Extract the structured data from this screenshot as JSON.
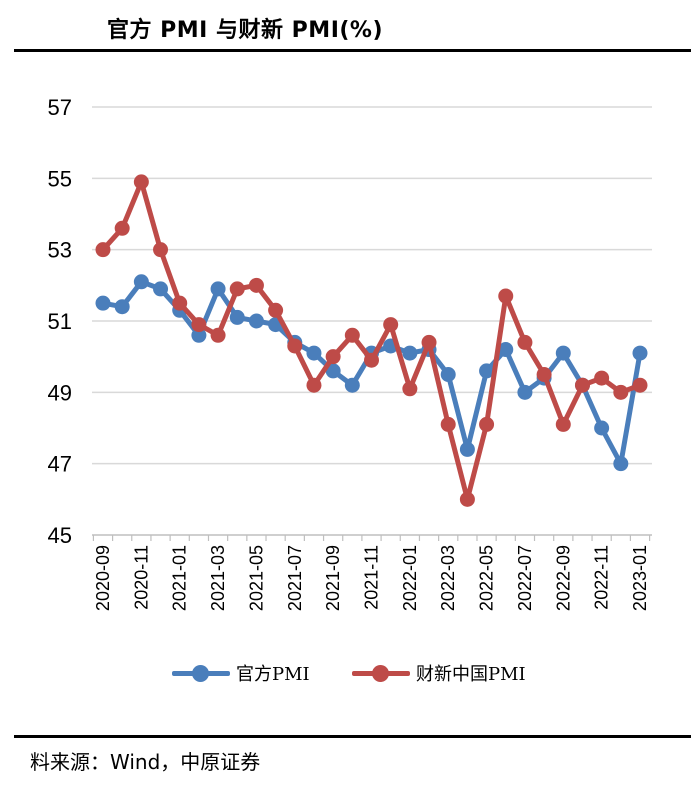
{
  "header": {
    "title": "官方 PMI 与财新 PMI(%)"
  },
  "footer": {
    "source": "料来源：Wind，中原证券"
  },
  "colors": {
    "official": "#4a7ebb",
    "caixin": "#be4b48",
    "grid": "#d9d9d9",
    "axis": "#bfbfbf"
  },
  "chart_data": {
    "type": "line",
    "title": "官方 PMI 与财新 PMI(%)",
    "xlabel": "",
    "ylabel": "",
    "ylim": [
      45,
      57
    ],
    "yticks": [
      45,
      47,
      49,
      51,
      53,
      55,
      57
    ],
    "grid": true,
    "legend_position": "bottom",
    "x": [
      "2020-09",
      "2020-10",
      "2020-11",
      "2020-12",
      "2021-01",
      "2021-02",
      "2021-03",
      "2021-04",
      "2021-05",
      "2021-06",
      "2021-07",
      "2021-08",
      "2021-09",
      "2021-10",
      "2021-11",
      "2021-12",
      "2022-01",
      "2022-02",
      "2022-03",
      "2022-04",
      "2022-05",
      "2022-06",
      "2022-07",
      "2022-08",
      "2022-09",
      "2022-10",
      "2022-11",
      "2022-12",
      "2023-01"
    ],
    "xtick_labels": [
      "2020-09",
      "2020-11",
      "2021-01",
      "2021-03",
      "2021-05",
      "2021-07",
      "2021-09",
      "2021-11",
      "2022-01",
      "2022-03",
      "2022-05",
      "2022-07",
      "2022-09",
      "2022-11",
      "2023-01"
    ],
    "series": [
      {
        "name": "官方PMI",
        "color": "#4a7ebb",
        "values": [
          51.5,
          51.4,
          52.1,
          51.9,
          51.3,
          50.6,
          51.9,
          51.1,
          51.0,
          50.9,
          50.4,
          50.1,
          49.6,
          49.2,
          50.1,
          50.3,
          50.1,
          50.2,
          49.5,
          47.4,
          49.6,
          50.2,
          49.0,
          49.4,
          50.1,
          49.2,
          48.0,
          47.0,
          50.1
        ]
      },
      {
        "name": "财新中国PMI",
        "color": "#be4b48",
        "values": [
          53.0,
          53.6,
          54.9,
          53.0,
          51.5,
          50.9,
          50.6,
          51.9,
          52.0,
          51.3,
          50.3,
          49.2,
          50.0,
          50.6,
          49.9,
          50.9,
          49.1,
          50.4,
          48.1,
          46.0,
          48.1,
          51.7,
          50.4,
          49.5,
          48.1,
          49.2,
          49.4,
          49.0,
          49.2
        ]
      }
    ]
  }
}
